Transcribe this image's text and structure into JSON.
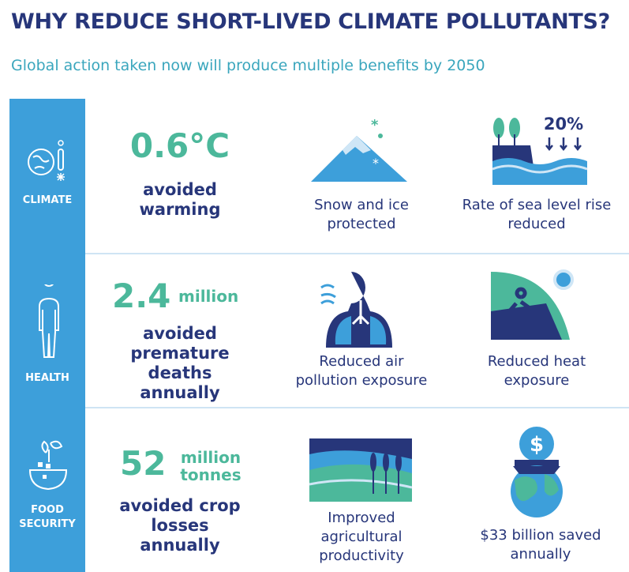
{
  "header": {
    "title": "WHY REDUCE SHORT-LIVED CLIMATE POLLUTANTS?",
    "subtitle": "Global action taken now will produce multiple benefits by 2050"
  },
  "rows": [
    {
      "category": "CLIMATE",
      "stat": {
        "number": "0.6°C"
      },
      "description": "avoided warming",
      "benefits": [
        "Snow and ice protected",
        "Rate of sea level rise reduced"
      ],
      "icon_label": "20%"
    },
    {
      "category": "HEALTH",
      "stat": {
        "number": "2.4",
        "unit": "million"
      },
      "description": "avoided premature deaths annually",
      "benefits": [
        "Reduced air pollution exposure",
        "Reduced heat exposure"
      ]
    },
    {
      "category": "FOOD SECURITY",
      "stat": {
        "number": "52",
        "unit": "million tonnes"
      },
      "description": "avoided crop losses annually",
      "benefits": [
        "Improved agricultural productivity",
        "$33 billion saved annually"
      ],
      "icon_label": "$"
    }
  ]
}
